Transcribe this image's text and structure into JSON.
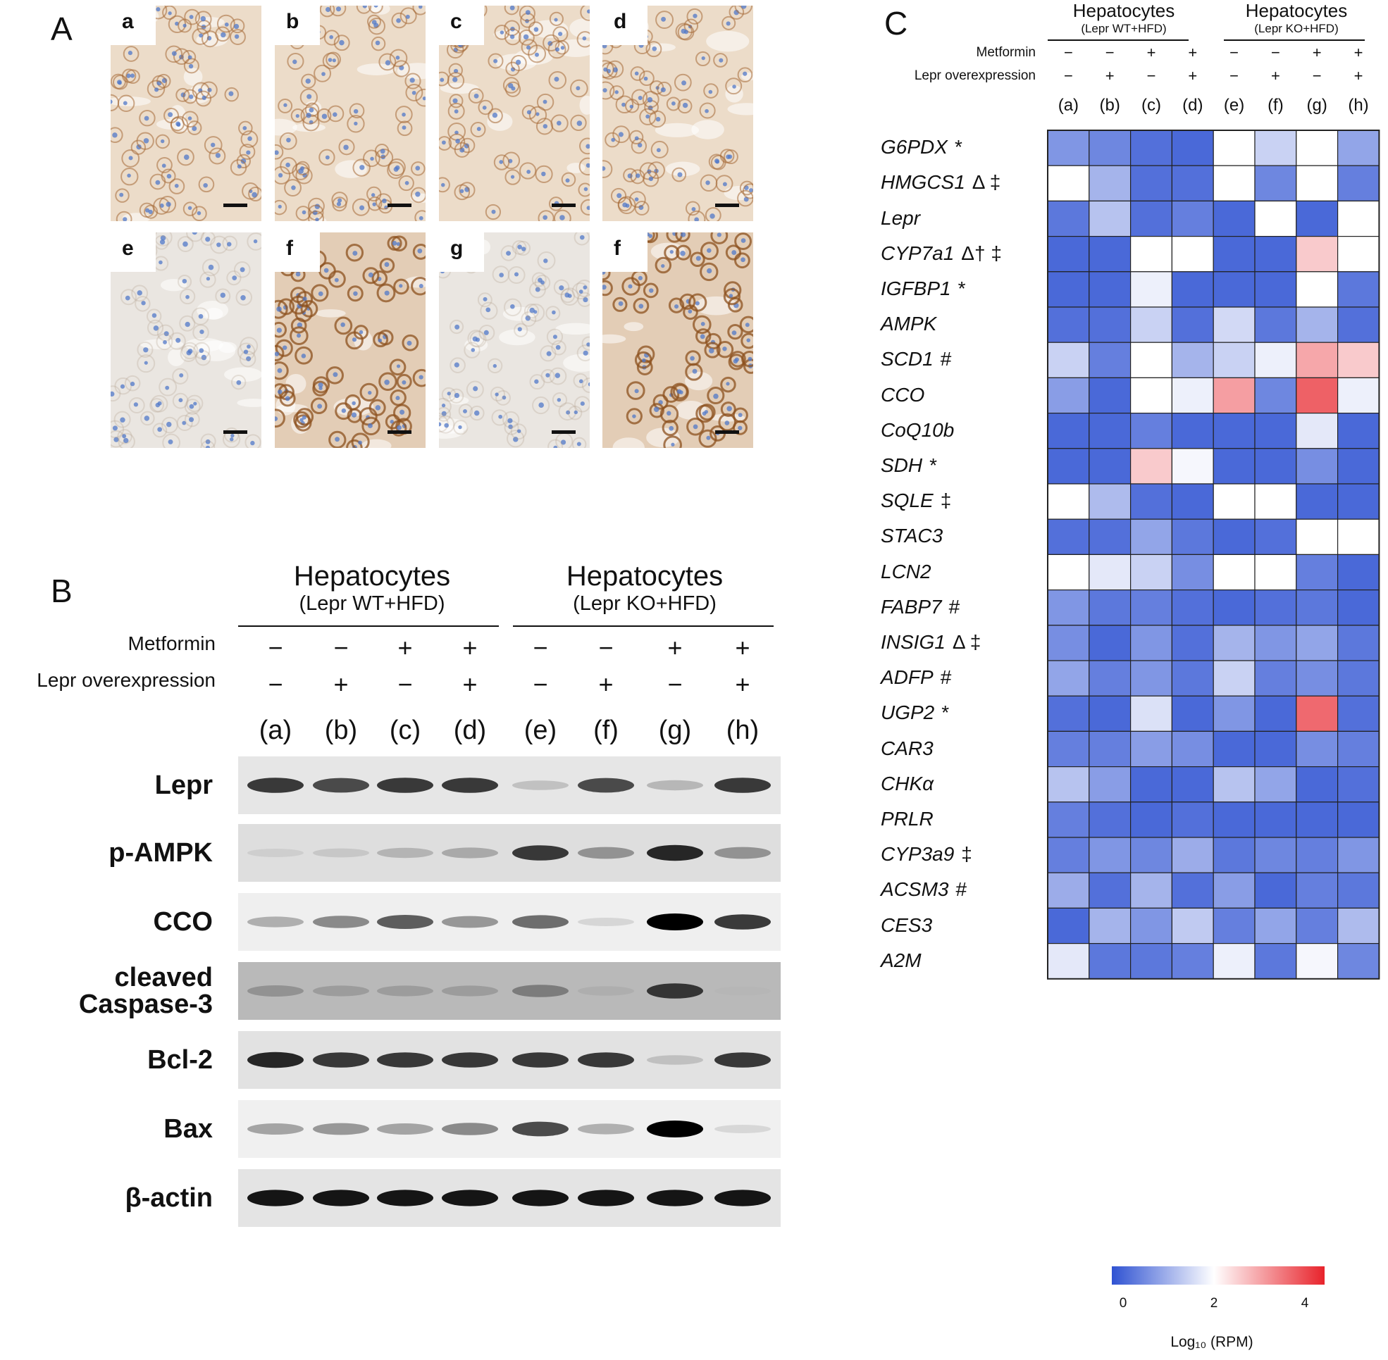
{
  "panel_a": {
    "letter": "A",
    "tiles": [
      {
        "label": "a",
        "stain": "moderate"
      },
      {
        "label": "b",
        "stain": "moderate"
      },
      {
        "label": "c",
        "stain": "moderate"
      },
      {
        "label": "d",
        "stain": "moderate"
      },
      {
        "label": "e",
        "stain": "none"
      },
      {
        "label": "f",
        "stain": "strong"
      },
      {
        "label": "g",
        "stain": "none"
      },
      {
        "label": "f",
        "stain": "strong"
      }
    ]
  },
  "panel_b": {
    "letter": "B",
    "group1": {
      "title": "Hepatocytes",
      "subtitle": "(Lepr WT+HFD)"
    },
    "group2": {
      "title": "Hepatocytes",
      "subtitle": "(Lepr KO+HFD)"
    },
    "treatments": [
      {
        "label": "Metformin",
        "signs": [
          "−",
          "−",
          "+",
          "+",
          "−",
          "−",
          "+",
          "+"
        ]
      },
      {
        "label": "Lepr overexpression",
        "signs": [
          "−",
          "+",
          "−",
          "+",
          "−",
          "+",
          "−",
          "+"
        ]
      }
    ],
    "lanes": [
      "(a)",
      "(b)",
      "(c)",
      "(d)",
      "(e)",
      "(f)",
      "(g)",
      "(h)"
    ],
    "blots": [
      {
        "label": "Lepr",
        "intensity": [
          0.85,
          0.8,
          0.85,
          0.85,
          0.35,
          0.8,
          0.4,
          0.85
        ],
        "background": "#e6e6e6"
      },
      {
        "label": "p-AMPK",
        "intensity": [
          0.25,
          0.3,
          0.4,
          0.45,
          0.85,
          0.55,
          0.9,
          0.55
        ],
        "background": "#dedede"
      },
      {
        "label": "CCO",
        "intensity": [
          0.45,
          0.6,
          0.75,
          0.55,
          0.7,
          0.25,
          1.0,
          0.85
        ],
        "background": "#efefef"
      },
      {
        "label": "cleaved\nCaspase-3",
        "intensity": [
          0.5,
          0.45,
          0.45,
          0.45,
          0.6,
          0.35,
          0.85,
          0.3
        ],
        "background": "#b9b9b9"
      },
      {
        "label": "Bcl-2",
        "intensity": [
          0.9,
          0.85,
          0.85,
          0.85,
          0.85,
          0.85,
          0.35,
          0.85
        ],
        "background": "#e2e2e2"
      },
      {
        "label": "Bax",
        "intensity": [
          0.5,
          0.55,
          0.5,
          0.6,
          0.8,
          0.45,
          1.0,
          0.25
        ],
        "background": "#f0f0f0"
      },
      {
        "label": "β-actin",
        "intensity": [
          0.95,
          0.95,
          0.95,
          0.95,
          0.95,
          0.95,
          0.95,
          0.95
        ],
        "background": "#e4e4e4"
      }
    ]
  },
  "panel_c": {
    "letter": "C",
    "group1": {
      "title": "Hepatocytes",
      "subtitle": "(Lepr WT+HFD)"
    },
    "group2": {
      "title": "Hepatocytes",
      "subtitle": "(Lepr KO+HFD)"
    },
    "treatments": [
      {
        "label": "Metformin",
        "signs": [
          "−",
          "−",
          "+",
          "+",
          "−",
          "−",
          "+",
          "+"
        ]
      },
      {
        "label": "Lepr overexpression",
        "signs": [
          "−",
          "+",
          "−",
          "+",
          "−",
          "+",
          "−",
          "+"
        ]
      }
    ],
    "lanes": [
      "(a)",
      "(b)",
      "(c)",
      "(d)",
      "(e)",
      "(f)",
      "(g)",
      "(h)"
    ],
    "legend": {
      "title": "Log₁₀ (RPM)",
      "ticks": [
        "0",
        "2",
        "4"
      ]
    },
    "colors": {
      "low": "#2f52d2",
      "mid": "#ffffff",
      "high": "#e8232b"
    }
  },
  "chart_data": {
    "type": "heatmap",
    "title": "",
    "xlabel": "",
    "ylabel": "",
    "colorbar_label": "Log₁₀ (RPM)",
    "colorbar_range": [
      -0.3,
      4.5
    ],
    "columns": [
      "(a)",
      "(b)",
      "(c)",
      "(d)",
      "(e)",
      "(f)",
      "(g)",
      "(h)"
    ],
    "rows": [
      {
        "gene": "G6PDX",
        "mark": "*",
        "values": [
          0.6,
          0.4,
          0.1,
          0.0,
          2.0,
          1.4,
          2.0,
          0.8
        ]
      },
      {
        "gene": "HMGCS1",
        "mark": "Δ ‡",
        "values": [
          2.0,
          1.0,
          0.1,
          0.1,
          2.0,
          0.4,
          2.0,
          0.3
        ]
      },
      {
        "gene": "Lepr",
        "mark": "",
        "values": [
          0.2,
          1.2,
          0.1,
          0.3,
          0.0,
          2.0,
          0.0,
          2.0
        ]
      },
      {
        "gene": "CYP7a1",
        "mark": "Δ† ‡",
        "values": [
          0.0,
          0.0,
          2.0,
          2.0,
          0.0,
          0.0,
          2.6,
          2.0
        ]
      },
      {
        "gene": "IGFBP1",
        "mark": "*",
        "values": [
          0.0,
          0.0,
          1.8,
          0.0,
          0.0,
          0.0,
          2.0,
          0.2
        ]
      },
      {
        "gene": "AMPK",
        "mark": "",
        "values": [
          0.1,
          0.1,
          1.4,
          0.1,
          1.5,
          0.2,
          1.0,
          0.1
        ]
      },
      {
        "gene": "SCD1",
        "mark": "#",
        "values": [
          1.4,
          0.3,
          2.0,
          1.0,
          1.4,
          1.8,
          3.0,
          2.6
        ]
      },
      {
        "gene": "CCO",
        "mark": "",
        "values": [
          0.7,
          0.0,
          2.0,
          1.8,
          3.1,
          0.4,
          3.8,
          1.8
        ]
      },
      {
        "gene": "CoQ10b",
        "mark": "",
        "values": [
          0.0,
          0.0,
          0.3,
          0.0,
          0.0,
          0.0,
          1.7,
          0.0
        ]
      },
      {
        "gene": "SDH",
        "mark": "*",
        "values": [
          0.0,
          0.0,
          2.6,
          1.9,
          0.0,
          0.0,
          0.5,
          0.0
        ]
      },
      {
        "gene": "SQLE",
        "mark": "‡",
        "values": [
          2.0,
          1.1,
          0.1,
          0.0,
          2.0,
          2.0,
          0.0,
          0.0
        ]
      },
      {
        "gene": "STAC3",
        "mark": "",
        "values": [
          0.1,
          0.1,
          0.8,
          0.2,
          0.0,
          0.1,
          2.0,
          2.0
        ]
      },
      {
        "gene": "LCN2",
        "mark": "",
        "values": [
          2.0,
          1.7,
          1.4,
          0.5,
          2.0,
          2.0,
          0.3,
          0.0
        ]
      },
      {
        "gene": "FABP7",
        "mark": "#",
        "values": [
          0.6,
          0.2,
          0.3,
          0.1,
          0.0,
          0.1,
          0.2,
          0.0
        ]
      },
      {
        "gene": "INSIG1",
        "mark": "Δ ‡",
        "values": [
          0.5,
          0.0,
          0.6,
          0.1,
          1.0,
          0.6,
          0.8,
          0.2
        ]
      },
      {
        "gene": "ADFP",
        "mark": "#",
        "values": [
          0.8,
          0.3,
          0.6,
          0.2,
          1.4,
          0.3,
          0.5,
          0.2
        ]
      },
      {
        "gene": "UGP2",
        "mark": "*",
        "values": [
          0.1,
          0.0,
          1.6,
          0.0,
          0.6,
          0.0,
          3.7,
          0.1
        ]
      },
      {
        "gene": "CAR3",
        "mark": "",
        "values": [
          0.3,
          0.3,
          0.7,
          0.5,
          0.0,
          0.0,
          0.5,
          0.3
        ]
      },
      {
        "gene": "CHKα",
        "mark": "",
        "values": [
          1.2,
          0.7,
          0.0,
          0.0,
          1.2,
          0.8,
          0.0,
          0.1
        ]
      },
      {
        "gene": "PRLR",
        "mark": "",
        "values": [
          0.3,
          0.1,
          0.0,
          0.1,
          0.0,
          0.0,
          0.0,
          0.0
        ]
      },
      {
        "gene": "CYP3a9",
        "mark": "‡",
        "values": [
          0.3,
          0.6,
          0.4,
          0.9,
          0.2,
          0.4,
          0.3,
          0.6
        ]
      },
      {
        "gene": "ACSM3",
        "mark": "#",
        "values": [
          0.9,
          0.1,
          1.0,
          0.1,
          0.7,
          0.0,
          0.3,
          0.2
        ]
      },
      {
        "gene": "CES3",
        "mark": "",
        "values": [
          0.0,
          1.0,
          0.6,
          1.3,
          0.3,
          0.8,
          0.3,
          1.1
        ]
      },
      {
        "gene": "A2M",
        "mark": "",
        "values": [
          1.7,
          0.2,
          0.2,
          0.3,
          1.8,
          0.2,
          1.9,
          0.4
        ]
      }
    ]
  }
}
